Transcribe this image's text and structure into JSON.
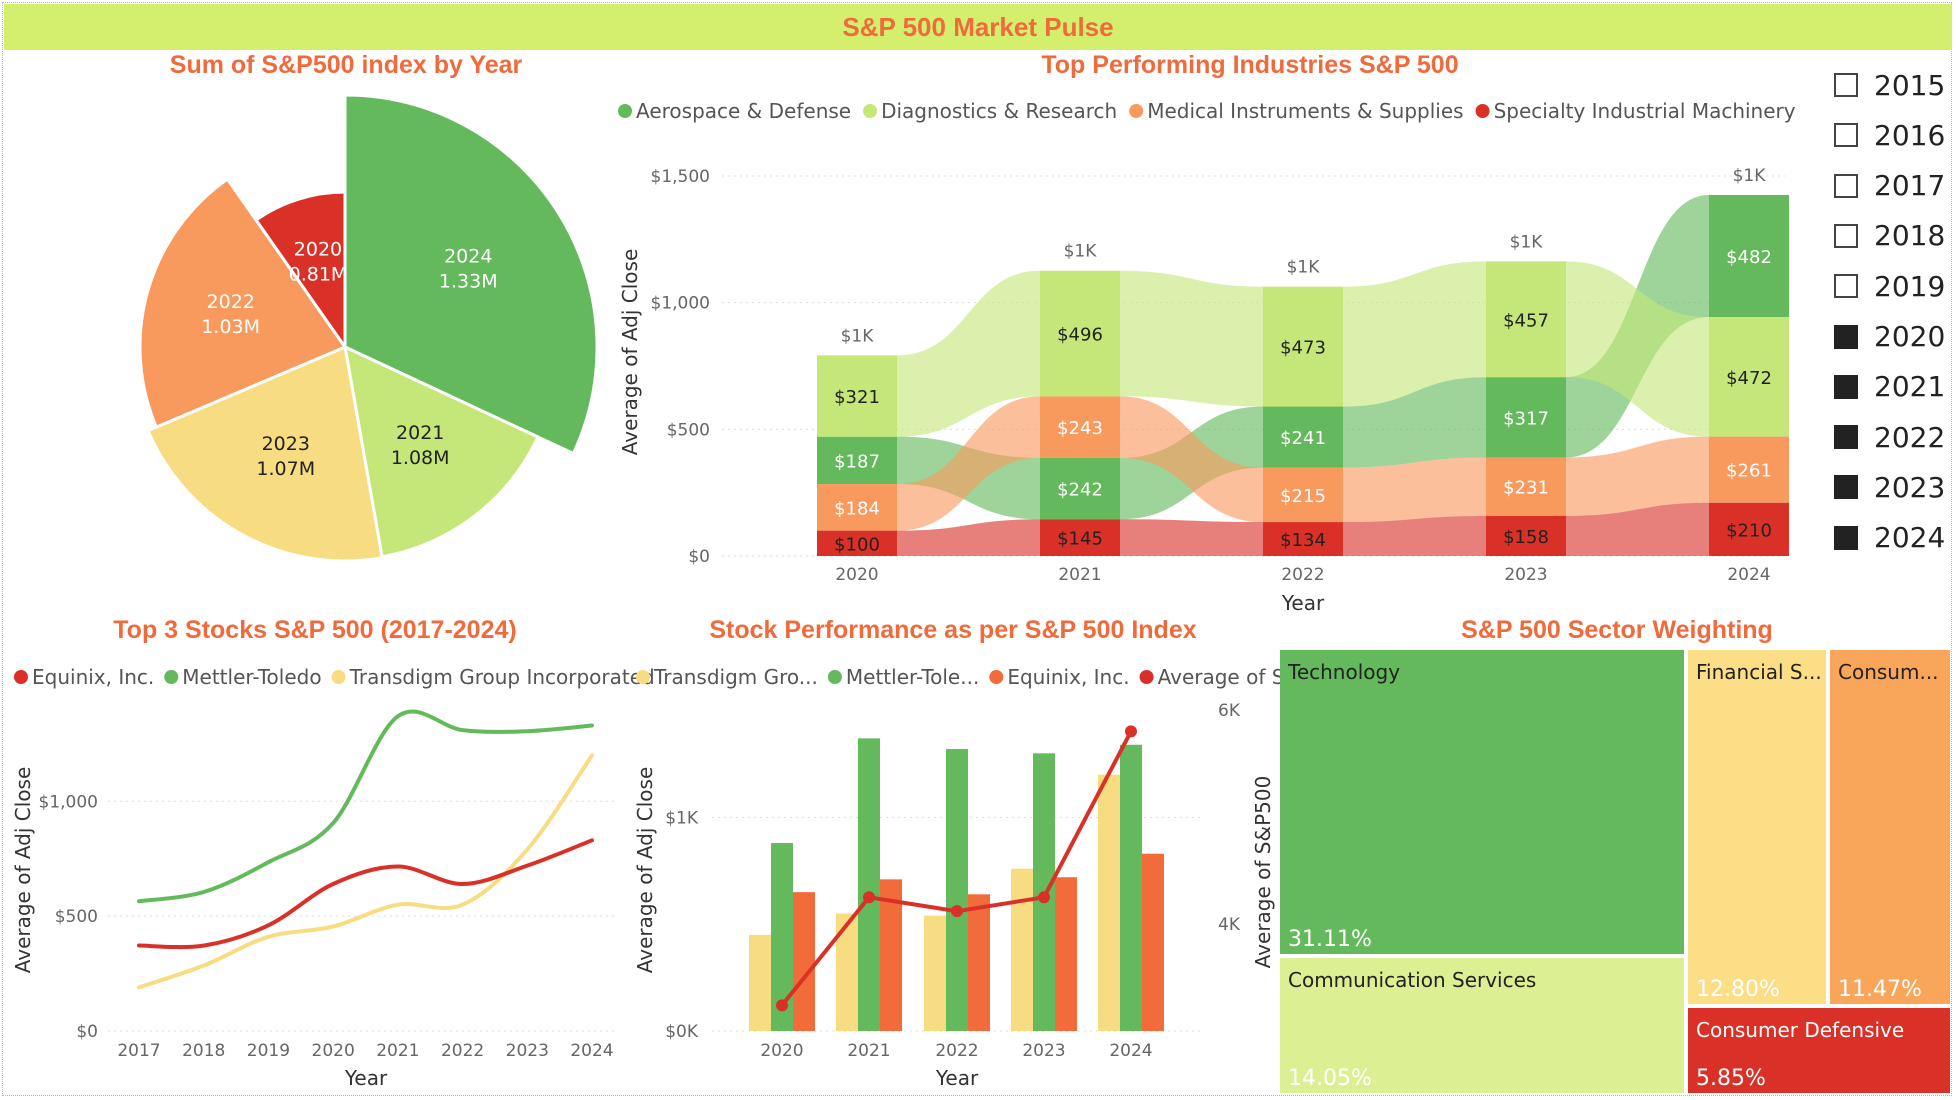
{
  "title": "S&P 500 Market Pulse",
  "colors": {
    "green": "#63b95c",
    "lightgreen": "#c5e77a",
    "yellow": "#f7dc82",
    "orange": "#f8995e",
    "red": "#d93128",
    "title": "#f06a3c"
  },
  "year_slicer": [
    {
      "label": "2015",
      "checked": false
    },
    {
      "label": "2016",
      "checked": false
    },
    {
      "label": "2017",
      "checked": false
    },
    {
      "label": "2018",
      "checked": false
    },
    {
      "label": "2019",
      "checked": false
    },
    {
      "label": "2020",
      "checked": true
    },
    {
      "label": "2021",
      "checked": true
    },
    {
      "label": "2022",
      "checked": true
    },
    {
      "label": "2023",
      "checked": true
    },
    {
      "label": "2024",
      "checked": true
    }
  ],
  "chart_data": [
    {
      "id": "pie",
      "type": "pie",
      "title": "Sum of S&P500 index by Year",
      "slices": [
        {
          "year": "2024",
          "value": 1.33,
          "label": "1.33M"
        },
        {
          "year": "2021",
          "value": 1.08,
          "label": "1.08M"
        },
        {
          "year": "2023",
          "value": 1.07,
          "label": "1.07M"
        },
        {
          "year": "2022",
          "value": 1.03,
          "label": "1.03M"
        },
        {
          "year": "2020",
          "value": 0.81,
          "label": "0.81M"
        }
      ]
    },
    {
      "id": "ribbon",
      "type": "bar",
      "stacked": true,
      "title": "Top Performing Industries S&P 500",
      "xlabel": "Year",
      "ylabel": "Average of Adj Close",
      "ylim": [
        0,
        1500
      ],
      "yticks": [
        "$0",
        "$500",
        "$1,000",
        "$1,500"
      ],
      "categories": [
        "2020",
        "2021",
        "2022",
        "2023",
        "2024"
      ],
      "totals_label": [
        "$1K",
        "$1K",
        "$1K",
        "$1K",
        "$1K"
      ],
      "legend": [
        "Aerospace & Defense",
        "Diagnostics & Research",
        "Medical Instruments & Supplies",
        "Specialty Industrial Machinery"
      ],
      "series": [
        {
          "name": "Aerospace & Defense",
          "values": [
            187,
            242,
            241,
            317,
            482
          ],
          "labels": [
            "$187",
            "$242",
            "$241",
            "$317",
            "$482"
          ]
        },
        {
          "name": "Diagnostics & Research",
          "values": [
            321,
            496,
            473,
            457,
            472
          ],
          "labels": [
            "$321",
            "$496",
            "$473",
            "$457",
            "$472"
          ]
        },
        {
          "name": "Medical Instruments & Supplies",
          "values": [
            184,
            243,
            215,
            231,
            261
          ],
          "labels": [
            "$184",
            "$243",
            "$215",
            "$231",
            "$261"
          ]
        },
        {
          "name": "Specialty Industrial Machinery",
          "values": [
            100,
            145,
            134,
            158,
            210
          ],
          "labels": [
            "$100",
            "$145",
            "$134",
            "$158",
            "$210"
          ]
        }
      ]
    },
    {
      "id": "line",
      "type": "line",
      "title": "Top 3 Stocks S&P 500 (2017-2024)",
      "xlabel": "Year",
      "ylabel": "Average of Adj Close",
      "ylim": [
        0,
        1300
      ],
      "yticks": [
        "$0",
        "$500",
        "$1,000"
      ],
      "categories": [
        "2017",
        "2018",
        "2019",
        "2020",
        "2021",
        "2022",
        "2023",
        "2024"
      ],
      "legend": [
        "Equinix, Inc.",
        "Mettler-Toledo",
        "Transdigm Group Incorporated"
      ],
      "series": [
        {
          "name": "Equinix, Inc.",
          "values": [
            372,
            372,
            460,
            640,
            716,
            640,
            720,
            830
          ]
        },
        {
          "name": "Mettler-Toledo",
          "values": [
            565,
            605,
            735,
            905,
            1370,
            1310,
            1305,
            1330
          ]
        },
        {
          "name": "Transdigm Group Incorporated",
          "values": [
            190,
            285,
            410,
            455,
            550,
            550,
            790,
            1200
          ]
        }
      ]
    },
    {
      "id": "combo",
      "type": "bar",
      "title": "Stock Performance as per S&P 500 Index",
      "xlabel": "Year",
      "ylabel": "Average of Adj Close",
      "ylim": [
        0,
        1500
      ],
      "y2lim": [
        3000,
        6000
      ],
      "yticks": [
        "$0K",
        "$1K"
      ],
      "y2ticks": [
        "4K",
        "6K"
      ],
      "categories": [
        "2020",
        "2021",
        "2022",
        "2023",
        "2024"
      ],
      "legend": [
        "Transdigm Gro...",
        "Mettler-Tole...",
        "Equinix, Inc.",
        "Average of S..."
      ],
      "series": [
        {
          "name": "Transdigm Gro...",
          "values": [
            450,
            550,
            540,
            760,
            1200
          ]
        },
        {
          "name": "Mettler-Tole...",
          "values": [
            880,
            1370,
            1320,
            1300,
            1340
          ]
        },
        {
          "name": "Equinix, Inc.",
          "values": [
            650,
            710,
            640,
            720,
            830
          ]
        }
      ],
      "line_series": {
        "name": "Average of S...",
        "values": [
          3240,
          4250,
          4120,
          4250,
          5800
        ]
      }
    },
    {
      "id": "treemap",
      "type": "treemap",
      "title": "S&P 500 Sector Weighting",
      "ylabel": "Average of S&P500",
      "items": [
        {
          "name": "Technology",
          "value": "31.11%"
        },
        {
          "name": "Communication Services",
          "value": "14.05%"
        },
        {
          "name": "Financial S...",
          "value": "12.80%"
        },
        {
          "name": "Consum...",
          "value": "11.47%"
        },
        {
          "name": "Consumer Defensive",
          "value": "5.85%"
        }
      ]
    }
  ]
}
